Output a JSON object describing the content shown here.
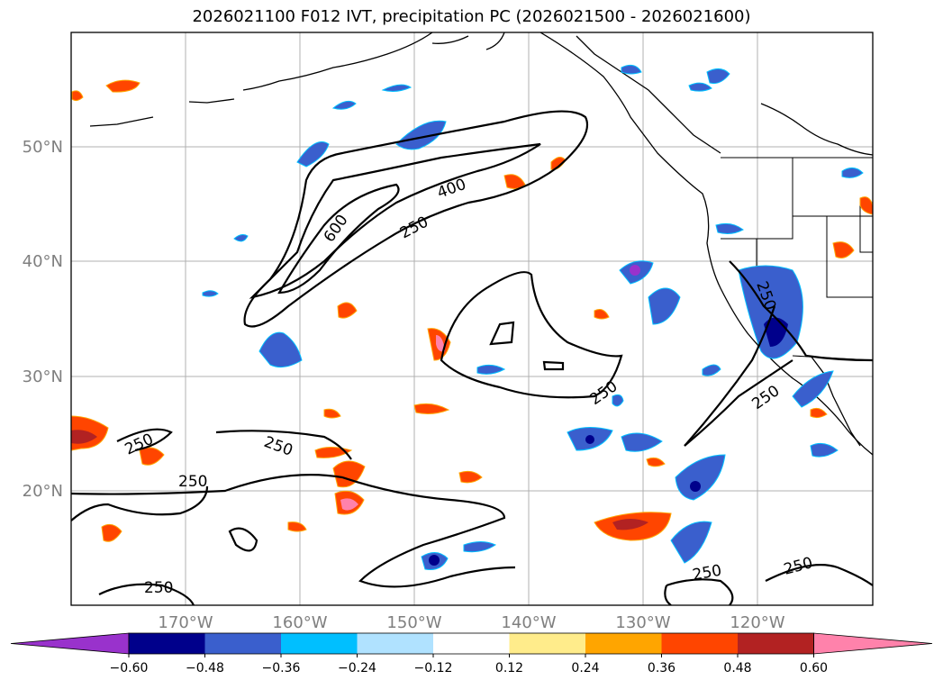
{
  "title": "2026021100 F012 IVT, precipitation PC (2026021500 - 2026021600)",
  "map": {
    "lat_labels": [
      "50°N",
      "40°N",
      "30°N",
      "20°N"
    ],
    "lon_labels": [
      "170°W",
      "160°W",
      "150°W",
      "140°W",
      "130°W",
      "120°W"
    ],
    "contour_labels": [
      "600",
      "400",
      "250",
      "250",
      "250",
      "250",
      "250",
      "250",
      "250",
      "250",
      "250",
      "250"
    ]
  },
  "colorbar": {
    "colors": [
      "#9932CC",
      "#00008B",
      "#3A5FCD",
      "#00BFFF",
      "#B0E2FF",
      "#FFFFFF",
      "#FFEC8B",
      "#FFA500",
      "#FF4500",
      "#B22222",
      "#FF82AB"
    ],
    "tick_labels": [
      "−0.60",
      "−0.48",
      "−0.36",
      "−0.24",
      "−0.12",
      "0.12",
      "0.24",
      "0.36",
      "0.48",
      "0.60"
    ]
  },
  "chart_data": {
    "type": "map",
    "title": "2026021100 F012 IVT, precipitation PC (2026021500 - 2026021600)",
    "variables": [
      "IVT (contours)",
      "precipitation PC (filled)"
    ],
    "ivt_contour_levels": [
      250,
      400,
      600
    ],
    "pc_levels": [
      -0.6,
      -0.48,
      -0.36,
      -0.24,
      -0.12,
      0.12,
      0.24,
      0.36,
      0.48,
      0.6
    ],
    "lat_range": [
      10,
      60
    ],
    "lon_range": [
      -180,
      -110
    ]
  }
}
